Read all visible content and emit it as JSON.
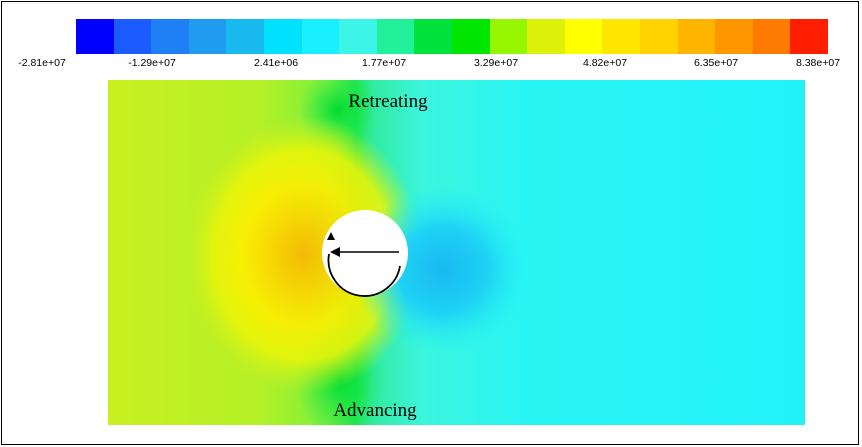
{
  "colorbar": {
    "colors": [
      "#0000ff",
      "#1a5cff",
      "#1f80f5",
      "#1f9cf0",
      "#19b9f0",
      "#00e0ff",
      "#19efff",
      "#3cf5e6",
      "#23f09b",
      "#00e33c",
      "#00e600",
      "#96f500",
      "#dcf00a",
      "#ffff00",
      "#ffe600",
      "#ffd200",
      "#ffb400",
      "#ff9600",
      "#ff7a00",
      "#ff1e00"
    ],
    "tick_labels": [
      "-2.81e+07",
      "-1.29e+07",
      "2.41e+06",
      "1.77e+07",
      "3.29e+07",
      "4.82e+07",
      "6.35e+07",
      "8.38e+07"
    ]
  },
  "annotations": {
    "top": "Retreating",
    "bottom": "Advancing"
  }
}
